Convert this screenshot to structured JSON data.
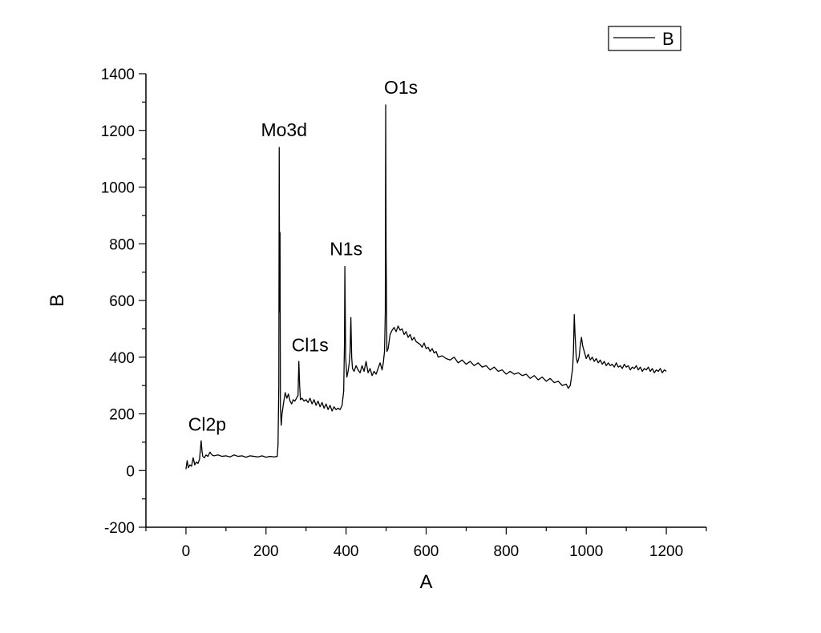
{
  "chart_data": {
    "type": "line",
    "title": "",
    "xlabel": "A",
    "ylabel": "B",
    "xlim": [
      -100,
      1300
    ],
    "ylim": [
      -200,
      1400
    ],
    "x_ticks": [
      0,
      200,
      400,
      600,
      800,
      1000,
      1200
    ],
    "y_ticks": [
      -200,
      0,
      200,
      400,
      600,
      800,
      1000,
      1200,
      1400
    ],
    "grid": false,
    "legend": {
      "position": "top-right",
      "entries": [
        "B"
      ]
    },
    "series": [
      {
        "name": "B",
        "color": "#000000",
        "points": [
          [
            0,
            5
          ],
          [
            3,
            35
          ],
          [
            6,
            10
          ],
          [
            10,
            20
          ],
          [
            14,
            15
          ],
          [
            18,
            45
          ],
          [
            22,
            20
          ],
          [
            26,
            30
          ],
          [
            30,
            25
          ],
          [
            34,
            40
          ],
          [
            38,
            105
          ],
          [
            40,
            70
          ],
          [
            42,
            50
          ],
          [
            46,
            45
          ],
          [
            50,
            55
          ],
          [
            55,
            50
          ],
          [
            60,
            65
          ],
          [
            65,
            55
          ],
          [
            70,
            52
          ],
          [
            80,
            55
          ],
          [
            90,
            50
          ],
          [
            100,
            52
          ],
          [
            110,
            48
          ],
          [
            120,
            55
          ],
          [
            130,
            50
          ],
          [
            140,
            52
          ],
          [
            150,
            47
          ],
          [
            160,
            52
          ],
          [
            170,
            50
          ],
          [
            180,
            48
          ],
          [
            190,
            52
          ],
          [
            200,
            47
          ],
          [
            210,
            50
          ],
          [
            220,
            48
          ],
          [
            228,
            50
          ],
          [
            230,
            90
          ],
          [
            232,
            300
          ],
          [
            233,
            1140
          ],
          [
            234,
            560
          ],
          [
            235,
            840
          ],
          [
            236,
            220
          ],
          [
            238,
            160
          ],
          [
            240,
            200
          ],
          [
            244,
            240
          ],
          [
            248,
            275
          ],
          [
            252,
            255
          ],
          [
            256,
            270
          ],
          [
            260,
            245
          ],
          [
            264,
            235
          ],
          [
            268,
            250
          ],
          [
            272,
            245
          ],
          [
            276,
            255
          ],
          [
            280,
            265
          ],
          [
            282,
            385
          ],
          [
            284,
            300
          ],
          [
            286,
            250
          ],
          [
            290,
            255
          ],
          [
            295,
            245
          ],
          [
            300,
            250
          ],
          [
            305,
            240
          ],
          [
            310,
            255
          ],
          [
            315,
            235
          ],
          [
            320,
            250
          ],
          [
            325,
            230
          ],
          [
            330,
            245
          ],
          [
            335,
            225
          ],
          [
            340,
            240
          ],
          [
            345,
            220
          ],
          [
            350,
            235
          ],
          [
            355,
            215
          ],
          [
            360,
            230
          ],
          [
            365,
            210
          ],
          [
            370,
            225
          ],
          [
            375,
            215
          ],
          [
            380,
            220
          ],
          [
            385,
            215
          ],
          [
            390,
            230
          ],
          [
            394,
            280
          ],
          [
            396,
            450
          ],
          [
            397,
            720
          ],
          [
            399,
            400
          ],
          [
            402,
            330
          ],
          [
            405,
            350
          ],
          [
            408,
            380
          ],
          [
            410,
            420
          ],
          [
            412,
            540
          ],
          [
            414,
            400
          ],
          [
            416,
            360
          ],
          [
            420,
            350
          ],
          [
            425,
            370
          ],
          [
            430,
            355
          ],
          [
            435,
            345
          ],
          [
            440,
            370
          ],
          [
            445,
            350
          ],
          [
            450,
            385
          ],
          [
            455,
            345
          ],
          [
            460,
            360
          ],
          [
            465,
            335
          ],
          [
            470,
            350
          ],
          [
            475,
            340
          ],
          [
            480,
            360
          ],
          [
            485,
            380
          ],
          [
            490,
            355
          ],
          [
            493,
            380
          ],
          [
            496,
            420
          ],
          [
            498,
            560
          ],
          [
            499,
            1290
          ],
          [
            500,
            780
          ],
          [
            502,
            420
          ],
          [
            505,
            430
          ],
          [
            510,
            480
          ],
          [
            515,
            495
          ],
          [
            520,
            505
          ],
          [
            525,
            490
          ],
          [
            530,
            510
          ],
          [
            535,
            495
          ],
          [
            540,
            500
          ],
          [
            545,
            480
          ],
          [
            550,
            490
          ],
          [
            555,
            470
          ],
          [
            560,
            480
          ],
          [
            565,
            460
          ],
          [
            570,
            470
          ],
          [
            575,
            455
          ],
          [
            580,
            450
          ],
          [
            585,
            445
          ],
          [
            590,
            435
          ],
          [
            595,
            450
          ],
          [
            600,
            430
          ],
          [
            605,
            435
          ],
          [
            610,
            420
          ],
          [
            615,
            430
          ],
          [
            620,
            415
          ],
          [
            625,
            420
          ],
          [
            630,
            400
          ],
          [
            640,
            405
          ],
          [
            650,
            395
          ],
          [
            660,
            390
          ],
          [
            670,
            400
          ],
          [
            680,
            380
          ],
          [
            690,
            390
          ],
          [
            700,
            375
          ],
          [
            710,
            385
          ],
          [
            720,
            370
          ],
          [
            730,
            380
          ],
          [
            740,
            365
          ],
          [
            750,
            370
          ],
          [
            760,
            355
          ],
          [
            770,
            365
          ],
          [
            780,
            350
          ],
          [
            790,
            355
          ],
          [
            800,
            340
          ],
          [
            810,
            350
          ],
          [
            820,
            340
          ],
          [
            830,
            345
          ],
          [
            840,
            335
          ],
          [
            850,
            340
          ],
          [
            860,
            325
          ],
          [
            870,
            335
          ],
          [
            880,
            320
          ],
          [
            890,
            330
          ],
          [
            900,
            315
          ],
          [
            910,
            325
          ],
          [
            920,
            310
          ],
          [
            930,
            315
          ],
          [
            940,
            300
          ],
          [
            950,
            305
          ],
          [
            955,
            290
          ],
          [
            960,
            300
          ],
          [
            963,
            330
          ],
          [
            966,
            360
          ],
          [
            968,
            420
          ],
          [
            970,
            550
          ],
          [
            972,
            480
          ],
          [
            975,
            400
          ],
          [
            978,
            380
          ],
          [
            982,
            400
          ],
          [
            985,
            440
          ],
          [
            988,
            470
          ],
          [
            991,
            440
          ],
          [
            995,
            420
          ],
          [
            1000,
            395
          ],
          [
            1005,
            410
          ],
          [
            1010,
            390
          ],
          [
            1015,
            400
          ],
          [
            1020,
            385
          ],
          [
            1025,
            395
          ],
          [
            1030,
            380
          ],
          [
            1035,
            390
          ],
          [
            1040,
            375
          ],
          [
            1045,
            385
          ],
          [
            1050,
            370
          ],
          [
            1055,
            380
          ],
          [
            1060,
            370
          ],
          [
            1065,
            375
          ],
          [
            1070,
            365
          ],
          [
            1075,
            380
          ],
          [
            1080,
            365
          ],
          [
            1085,
            370
          ],
          [
            1090,
            360
          ],
          [
            1095,
            375
          ],
          [
            1100,
            365
          ],
          [
            1105,
            370
          ],
          [
            1110,
            355
          ],
          [
            1115,
            365
          ],
          [
            1120,
            360
          ],
          [
            1125,
            370
          ],
          [
            1130,
            355
          ],
          [
            1135,
            365
          ],
          [
            1140,
            350
          ],
          [
            1145,
            360
          ],
          [
            1150,
            355
          ],
          [
            1155,
            365
          ],
          [
            1160,
            350
          ],
          [
            1165,
            360
          ],
          [
            1170,
            345
          ],
          [
            1175,
            355
          ],
          [
            1180,
            350
          ],
          [
            1185,
            360
          ],
          [
            1190,
            345
          ],
          [
            1195,
            355
          ],
          [
            1200,
            350
          ]
        ]
      }
    ],
    "annotations": [
      {
        "text": "Cl2p",
        "x": 53,
        "y": 140
      },
      {
        "text": "Mo3d",
        "x": 245,
        "y": 1180
      },
      {
        "text": "Cl1s",
        "x": 310,
        "y": 420
      },
      {
        "text": "N1s",
        "x": 400,
        "y": 760
      },
      {
        "text": "O1s",
        "x": 537,
        "y": 1330
      }
    ]
  }
}
